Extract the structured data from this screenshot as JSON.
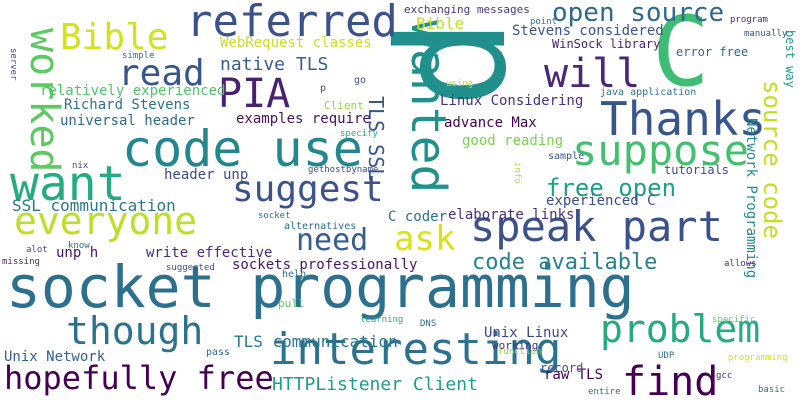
{
  "words": [
    {
      "text": "socket programming",
      "color": "#2d708e"
    },
    {
      "text": "p",
      "color": "#21908d"
    },
    {
      "text": "C",
      "color": "#3dbc74"
    },
    {
      "text": "code use",
      "color": "#23888e"
    },
    {
      "text": "interesting",
      "color": "#2c728e"
    },
    {
      "text": "referred",
      "color": "#3b528b"
    },
    {
      "text": "want",
      "color": "#25ab82"
    },
    {
      "text": "wanted",
      "color": "#21918c"
    },
    {
      "text": "Thanks",
      "color": "#39568c"
    },
    {
      "text": "speak part",
      "color": "#3b528b"
    },
    {
      "text": "suppose",
      "color": "#44bf70"
    },
    {
      "text": "suggest",
      "color": "#3b528b"
    },
    {
      "text": "everyone",
      "color": "#bddf26"
    },
    {
      "text": "though",
      "color": "#2c728e"
    },
    {
      "text": "hopefully free",
      "color": "#440154"
    },
    {
      "text": "find",
      "color": "#440154"
    },
    {
      "text": "problem",
      "color": "#25ab82"
    },
    {
      "text": "Bible",
      "color": "#d2e21b"
    },
    {
      "text": "read",
      "color": "#3a548c"
    },
    {
      "text": "PIA",
      "color": "#482173"
    },
    {
      "text": "will",
      "color": "#482878"
    },
    {
      "text": "worked",
      "color": "#5ec962"
    },
    {
      "text": "need",
      "color": "#365d8d"
    },
    {
      "text": "ask",
      "color": "#d8e219"
    },
    {
      "text": "open source",
      "color": "#31688e"
    },
    {
      "text": "source code",
      "color": "#c2df23"
    },
    {
      "text": "free open",
      "color": "#1fa088"
    },
    {
      "text": "code available",
      "color": "#26828e"
    },
    {
      "text": "native TLS",
      "color": "#355f8d"
    },
    {
      "text": "TLS SSL",
      "color": "#39568c"
    },
    {
      "text": "HTTPListener Client",
      "color": "#1f9e89"
    },
    {
      "text": "SSL communication",
      "color": "#2a788e"
    },
    {
      "text": "TLS communication",
      "color": "#2a768e"
    },
    {
      "text": "Bible",
      "color": "#c2df23"
    },
    {
      "text": "Network Programming",
      "color": "#228c8d"
    },
    {
      "text": "advance Max",
      "color": "#440154"
    },
    {
      "text": "WebRequest classes",
      "color": "#c8e020"
    },
    {
      "text": "Stevens considered",
      "color": "#3b528b"
    },
    {
      "text": "WinSock library",
      "color": "#482374"
    },
    {
      "text": "Richard Stevens",
      "color": "#2c728e"
    },
    {
      "text": "universal header",
      "color": "#2f6c8e"
    },
    {
      "text": "relatively experienced",
      "color": "#50c46a"
    },
    {
      "text": "examples require",
      "color": "#471164"
    },
    {
      "text": "Linux Considering",
      "color": "#46337f"
    },
    {
      "text": "good reading",
      "color": "#7ad151"
    },
    {
      "text": "experienced C",
      "color": "#3e4989"
    },
    {
      "text": "elaborate links",
      "color": "#46307e"
    },
    {
      "text": "C coder",
      "color": "#2e6f8e"
    },
    {
      "text": "sockets professionally",
      "color": "#481668"
    },
    {
      "text": "write effective",
      "color": "#472d7b"
    },
    {
      "text": "unp h",
      "color": "#471365"
    },
    {
      "text": "header unp",
      "color": "#3e4a89"
    },
    {
      "text": "Unix Network",
      "color": "#35608d"
    },
    {
      "text": "Unix Linux",
      "color": "#3f4788"
    },
    {
      "text": "raw TLS",
      "color": "#440154"
    },
    {
      "text": "exchanging messages",
      "color": "#453882"
    },
    {
      "text": "error free",
      "color": "#31688e"
    },
    {
      "text": "best way",
      "color": "#1f9a8a"
    },
    {
      "text": "java application",
      "color": "#2c738e"
    },
    {
      "text": "tutorials",
      "color": "#3e4c8a"
    },
    {
      "text": "sample",
      "color": "#39558c"
    },
    {
      "text": "Client",
      "color": "#8fd744"
    },
    {
      "text": "working",
      "color": "#46327e"
    },
    {
      "text": "record",
      "color": "#3b528b"
    },
    {
      "text": "alternatives",
      "color": "#2f6b8e"
    },
    {
      "text": "gethostbyname",
      "color": "#3e4c8a"
    },
    {
      "text": "help",
      "color": "#2e6e8e"
    },
    {
      "text": "pull",
      "color": "#5ec962"
    },
    {
      "text": "learning",
      "color": "#25ab82"
    },
    {
      "text": "function",
      "color": "#95d840"
    },
    {
      "text": "DNS",
      "color": "#31678e"
    },
    {
      "text": "pass",
      "color": "#2f6c8e"
    },
    {
      "text": "UDP",
      "color": "#2c728e"
    },
    {
      "text": "gcc",
      "color": "#482878"
    },
    {
      "text": "basic",
      "color": "#2b748e"
    },
    {
      "text": "entire",
      "color": "#2c728e"
    },
    {
      "text": "programming",
      "color": "#d8e219"
    },
    {
      "text": "specific",
      "color": "#5ec962"
    },
    {
      "text": "allows",
      "color": "#443983"
    },
    {
      "text": "suggested",
      "color": "#3b528b"
    },
    {
      "text": "missing",
      "color": "#482878"
    },
    {
      "text": "alot",
      "color": "#3e4c8a"
    },
    {
      "text": "know",
      "color": "#2c728e"
    },
    {
      "text": "nix",
      "color": "#3e4989"
    },
    {
      "text": "socket",
      "color": "#2c728e"
    },
    {
      "text": "specify",
      "color": "#25ab82"
    },
    {
      "text": "info",
      "color": "#c2df23"
    },
    {
      "text": "go",
      "color": "#3b528b"
    },
    {
      "text": "using",
      "color": "#c2df23"
    },
    {
      "text": "point",
      "color": "#2c728e"
    },
    {
      "text": "simple",
      "color": "#2c728e"
    },
    {
      "text": "server",
      "color": "#3e4c8a"
    },
    {
      "text": "program",
      "color": "#472d7b"
    },
    {
      "text": "manually",
      "color": "#3b528b"
    },
    {
      "text": "p",
      "color": "#3e4989"
    }
  ]
}
